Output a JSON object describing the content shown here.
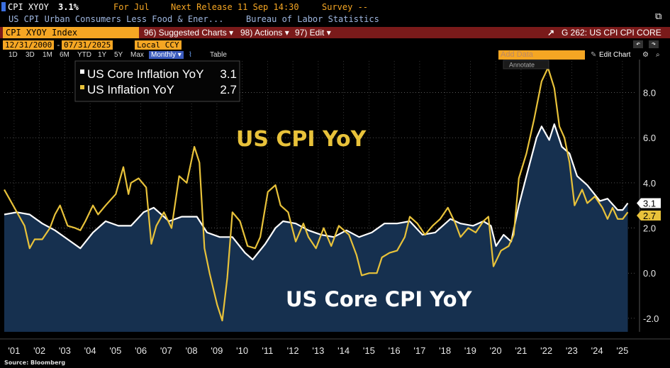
{
  "header": {
    "ticker": "CPI XYOY",
    "value": "3.1%",
    "period": "For Jul",
    "next_release": "Next Release 11 Sep 14:30",
    "survey": "Survey --",
    "description": "US CPI Urban Consumers Less Food & Ener...",
    "source": "Bureau of Labor Statistics"
  },
  "toolbar": {
    "security": "CPI XYOY Index",
    "suggested": "96) Suggested Charts ▾",
    "actions": "98) Actions ▾",
    "edit": "97) Edit ▾",
    "chart_id": "G 262: US CPI CPI CORE"
  },
  "controls": {
    "start_date": "12/31/2000",
    "end_date": "07/31/2025",
    "currency": "Local CCY",
    "periods": [
      "1D",
      "3D",
      "1M",
      "6M",
      "YTD",
      "1Y",
      "5Y",
      "Max"
    ],
    "frequency": "Monthly ▾",
    "table": "Table",
    "add_data": "Add Data",
    "edit_chart": "Edit Chart",
    "annotate": "Annotate"
  },
  "colors": {
    "core": "#ffffff",
    "headline": "#e8c23a",
    "area": "#16304f",
    "toolbar": "#7a1a1a",
    "accent": "#f5a623"
  },
  "footer": {
    "source": "Source: Bloomberg"
  },
  "chart_data": {
    "type": "line",
    "annotations": {
      "headline_label": "US CPI YoY",
      "core_label": "US Core CPI YoY"
    },
    "legend": {
      "placement": "top-left",
      "entries": [
        {
          "label": "US Core Inflation YoY",
          "value": "3.1"
        },
        {
          "label": "US Inflation YoY",
          "value": "2.7"
        }
      ]
    },
    "last_value_tags": {
      "core": "3.1",
      "headline": "2.7"
    },
    "ylim": [
      -2.6,
      9.4
    ],
    "xlim": [
      2001.0,
      2025.95
    ],
    "y_ticks": [
      -2.0,
      0.0,
      2.0,
      4.0,
      6.0,
      8.0
    ],
    "y_tick_labels": [
      "-2.0",
      "0.0",
      "2.0",
      "4.0",
      "6.0",
      "8.0"
    ],
    "x_ticks": [
      "'01",
      "'02",
      "'03",
      "'04",
      "'05",
      "'06",
      "'07",
      "'08",
      "'09",
      "'10",
      "'11",
      "'12",
      "'13",
      "'14",
      "'15",
      "'16",
      "'17",
      "'18",
      "'19",
      "'20",
      "'21",
      "'22",
      "'23",
      "'24",
      "'25"
    ],
    "grid": true,
    "series": [
      {
        "name": "US Core Inflation YoY",
        "area": true,
        "points": [
          [
            2001.0,
            2.6
          ],
          [
            2001.5,
            2.7
          ],
          [
            2002.0,
            2.6
          ],
          [
            2002.5,
            2.2
          ],
          [
            2003.0,
            1.9
          ],
          [
            2003.5,
            1.5
          ],
          [
            2004.0,
            1.1
          ],
          [
            2004.5,
            1.8
          ],
          [
            2005.0,
            2.3
          ],
          [
            2005.5,
            2.1
          ],
          [
            2006.0,
            2.1
          ],
          [
            2006.5,
            2.7
          ],
          [
            2006.9,
            2.9
          ],
          [
            2007.5,
            2.3
          ],
          [
            2008.0,
            2.5
          ],
          [
            2008.6,
            2.5
          ],
          [
            2009.0,
            1.8
          ],
          [
            2009.5,
            1.6
          ],
          [
            2010.0,
            1.6
          ],
          [
            2010.5,
            0.9
          ],
          [
            2010.8,
            0.6
          ],
          [
            2011.3,
            1.3
          ],
          [
            2011.7,
            2.0
          ],
          [
            2012.0,
            2.3
          ],
          [
            2012.5,
            2.2
          ],
          [
            2013.0,
            1.9
          ],
          [
            2013.5,
            1.7
          ],
          [
            2014.0,
            1.6
          ],
          [
            2014.5,
            1.9
          ],
          [
            2015.0,
            1.6
          ],
          [
            2015.5,
            1.8
          ],
          [
            2016.0,
            2.2
          ],
          [
            2016.5,
            2.2
          ],
          [
            2017.0,
            2.3
          ],
          [
            2017.5,
            1.7
          ],
          [
            2018.0,
            1.8
          ],
          [
            2018.6,
            2.4
          ],
          [
            2019.0,
            2.2
          ],
          [
            2019.5,
            2.1
          ],
          [
            2019.9,
            2.3
          ],
          [
            2020.2,
            2.1
          ],
          [
            2020.4,
            1.2
          ],
          [
            2020.7,
            1.7
          ],
          [
            2021.0,
            1.4
          ],
          [
            2021.3,
            3.0
          ],
          [
            2021.6,
            4.3
          ],
          [
            2022.0,
            6.0
          ],
          [
            2022.2,
            6.5
          ],
          [
            2022.5,
            5.9
          ],
          [
            2022.7,
            6.6
          ],
          [
            2023.0,
            5.6
          ],
          [
            2023.3,
            5.3
          ],
          [
            2023.6,
            4.3
          ],
          [
            2024.0,
            3.9
          ],
          [
            2024.5,
            3.2
          ],
          [
            2024.8,
            3.3
          ],
          [
            2025.2,
            2.8
          ],
          [
            2025.4,
            2.8
          ],
          [
            2025.6,
            3.1
          ]
        ]
      },
      {
        "name": "US Inflation YoY",
        "area": false,
        "points": [
          [
            2001.0,
            3.7
          ],
          [
            2001.2,
            3.3
          ],
          [
            2001.5,
            2.7
          ],
          [
            2001.8,
            2.1
          ],
          [
            2002.0,
            1.1
          ],
          [
            2002.2,
            1.5
          ],
          [
            2002.5,
            1.5
          ],
          [
            2002.8,
            2.0
          ],
          [
            2003.0,
            2.6
          ],
          [
            2003.2,
            3.0
          ],
          [
            2003.5,
            2.1
          ],
          [
            2003.8,
            2.0
          ],
          [
            2004.0,
            1.9
          ],
          [
            2004.2,
            2.3
          ],
          [
            2004.5,
            3.0
          ],
          [
            2004.7,
            2.6
          ],
          [
            2005.0,
            3.0
          ],
          [
            2005.4,
            3.5
          ],
          [
            2005.7,
            4.7
          ],
          [
            2005.9,
            3.5
          ],
          [
            2006.0,
            4.0
          ],
          [
            2006.3,
            4.2
          ],
          [
            2006.6,
            3.8
          ],
          [
            2006.8,
            1.3
          ],
          [
            2007.0,
            2.1
          ],
          [
            2007.3,
            2.7
          ],
          [
            2007.6,
            2.0
          ],
          [
            2007.9,
            4.3
          ],
          [
            2008.2,
            4.0
          ],
          [
            2008.5,
            5.6
          ],
          [
            2008.7,
            4.9
          ],
          [
            2008.9,
            1.1
          ],
          [
            2009.1,
            0.0
          ],
          [
            2009.4,
            -1.4
          ],
          [
            2009.6,
            -2.1
          ],
          [
            2009.8,
            -0.2
          ],
          [
            2010.0,
            2.7
          ],
          [
            2010.3,
            2.3
          ],
          [
            2010.6,
            1.2
          ],
          [
            2010.9,
            1.1
          ],
          [
            2011.1,
            1.6
          ],
          [
            2011.4,
            3.6
          ],
          [
            2011.7,
            3.9
          ],
          [
            2011.9,
            3.0
          ],
          [
            2012.2,
            2.7
          ],
          [
            2012.5,
            1.4
          ],
          [
            2012.8,
            2.2
          ],
          [
            2013.0,
            1.6
          ],
          [
            2013.3,
            1.1
          ],
          [
            2013.6,
            2.0
          ],
          [
            2013.9,
            1.2
          ],
          [
            2014.2,
            2.1
          ],
          [
            2014.6,
            1.7
          ],
          [
            2014.9,
            0.8
          ],
          [
            2015.1,
            -0.1
          ],
          [
            2015.4,
            0.0
          ],
          [
            2015.7,
            0.0
          ],
          [
            2015.9,
            0.7
          ],
          [
            2016.2,
            0.9
          ],
          [
            2016.5,
            1.0
          ],
          [
            2016.8,
            1.6
          ],
          [
            2017.0,
            2.5
          ],
          [
            2017.3,
            2.2
          ],
          [
            2017.6,
            1.7
          ],
          [
            2017.9,
            2.1
          ],
          [
            2018.2,
            2.4
          ],
          [
            2018.5,
            2.9
          ],
          [
            2018.8,
            2.2
          ],
          [
            2019.0,
            1.6
          ],
          [
            2019.3,
            2.0
          ],
          [
            2019.6,
            1.8
          ],
          [
            2019.9,
            2.3
          ],
          [
            2020.1,
            2.5
          ],
          [
            2020.3,
            0.3
          ],
          [
            2020.6,
            1.0
          ],
          [
            2020.9,
            1.2
          ],
          [
            2021.1,
            1.7
          ],
          [
            2021.3,
            4.2
          ],
          [
            2021.6,
            5.3
          ],
          [
            2021.9,
            6.8
          ],
          [
            2022.2,
            8.5
          ],
          [
            2022.45,
            9.1
          ],
          [
            2022.7,
            8.2
          ],
          [
            2022.9,
            6.5
          ],
          [
            2023.1,
            6.0
          ],
          [
            2023.3,
            4.9
          ],
          [
            2023.5,
            3.0
          ],
          [
            2023.8,
            3.7
          ],
          [
            2024.0,
            3.1
          ],
          [
            2024.3,
            3.4
          ],
          [
            2024.6,
            2.9
          ],
          [
            2024.8,
            2.4
          ],
          [
            2025.0,
            2.9
          ],
          [
            2025.2,
            2.4
          ],
          [
            2025.4,
            2.4
          ],
          [
            2025.6,
            2.7
          ]
        ]
      }
    ]
  }
}
